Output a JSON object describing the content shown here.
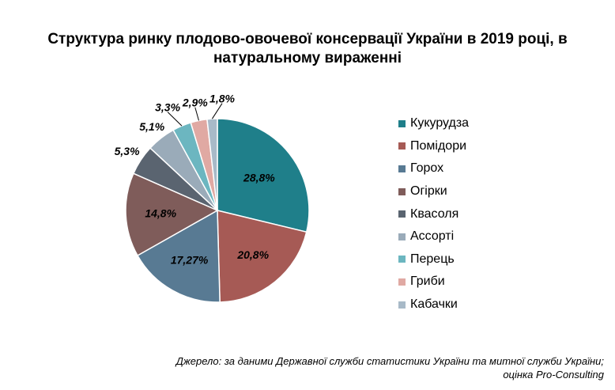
{
  "title_line1": "Структура ринку плодово-овочевої консервації України в 2019 році, в",
  "title_line2": "натуральному вираженні",
  "source_line1": "Джерело: за даними Державної служби статистики України та митної служби України;",
  "source_line2": "оцінка Pro-Consulting",
  "chart_data": {
    "type": "pie",
    "title": "Структура ринку плодово-овочевої консервації України в 2019 році, в натуральному вираженні",
    "legend_position": "right",
    "slices": [
      {
        "label": "Кукурудза",
        "value": 28.8,
        "value_label": "28,8%",
        "color": "#1f7f8a"
      },
      {
        "label": "Помідори",
        "value": 20.8,
        "value_label": "20,8%",
        "color": "#a65a55"
      },
      {
        "label": "Горох",
        "value": 17.27,
        "value_label": "17,27%",
        "color": "#587a93"
      },
      {
        "label": "Огірки",
        "value": 14.8,
        "value_label": "14,8%",
        "color": "#7f5c5a"
      },
      {
        "label": "Квасоля",
        "value": 5.3,
        "value_label": "5,3%",
        "color": "#5a6470"
      },
      {
        "label": "Ассорті",
        "value": 5.1,
        "value_label": "5,1%",
        "color": "#9aabb9"
      },
      {
        "label": "Перець",
        "value": 3.3,
        "value_label": "3,3%",
        "color": "#6cb6c0"
      },
      {
        "label": "Гриби",
        "value": 2.9,
        "value_label": "2,9%",
        "color": "#e0a9a3"
      },
      {
        "label": "Кабачки",
        "value": 1.8,
        "value_label": "1,8%",
        "color": "#a8bac8"
      }
    ]
  }
}
